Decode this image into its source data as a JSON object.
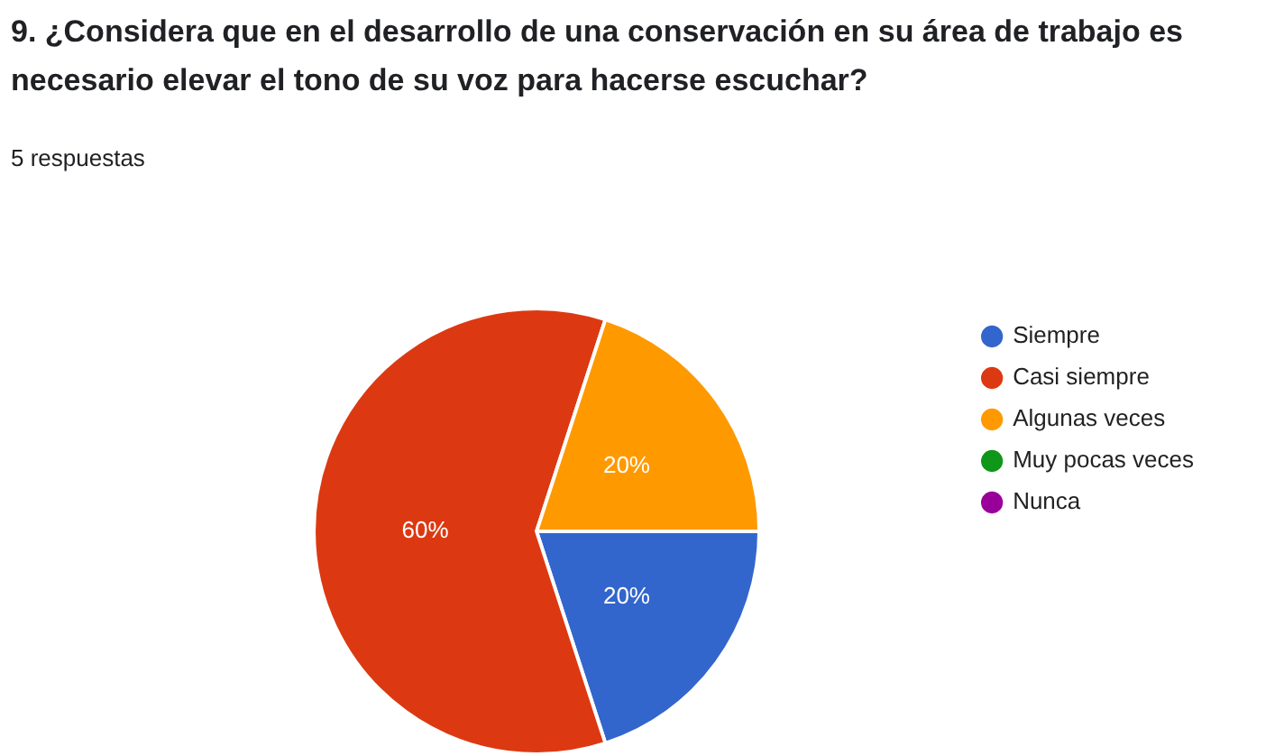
{
  "chart_data": {
    "type": "pie",
    "title": "9. ¿Considera que en el desarrollo de una conservación en su área de trabajo es necesario elevar el tono de su voz para hacerse escuchar?",
    "subtitle": "5 respuestas",
    "categories": [
      "Siempre",
      "Casi siempre",
      "Algunas veces",
      "Muy pocas veces",
      "Nunca"
    ],
    "values": [
      20,
      60,
      20,
      0,
      0
    ],
    "colors": [
      "#3366cc",
      "#dc3912",
      "#ff9900",
      "#109618",
      "#990099"
    ],
    "value_labels": [
      "20%",
      "60%",
      "20%",
      null,
      null
    ],
    "legend": "right"
  }
}
